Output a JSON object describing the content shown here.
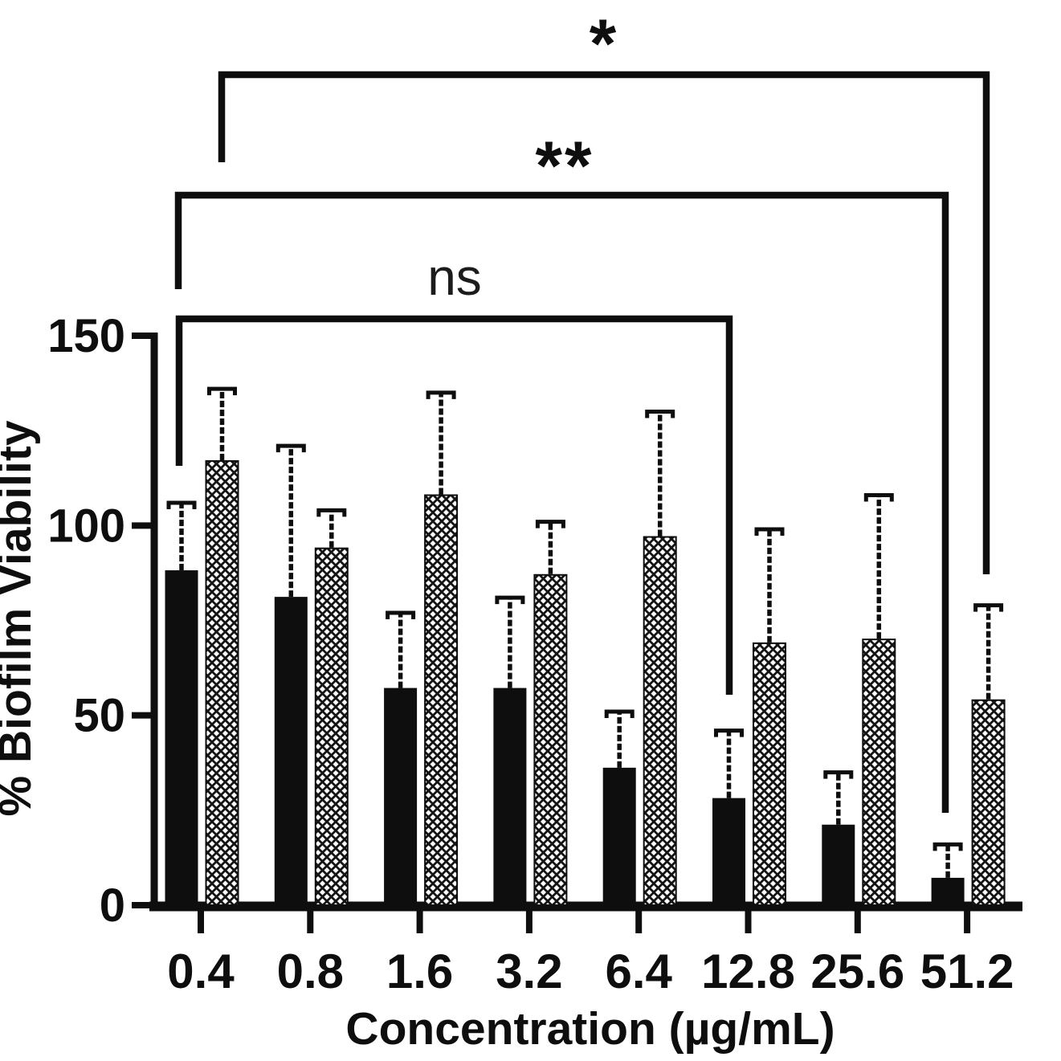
{
  "chart_data": {
    "type": "bar",
    "title": "",
    "xlabel": "Concentration (µg/mL)",
    "ylabel": "% Biofilm Viability",
    "ylim": [
      0,
      150
    ],
    "yticks": [
      "0",
      "50",
      "100",
      "150"
    ],
    "grid": false,
    "legend": "none",
    "error_bars": "upper-only",
    "categories": [
      "0.4",
      "0.8",
      "1.6",
      "3.2",
      "6.4",
      "12.8",
      "25.6",
      "51.2"
    ],
    "series": [
      {
        "name": "black-solid-bars",
        "pattern": "solid-black",
        "values": [
          88,
          81,
          57,
          57,
          36,
          28,
          21,
          7
        ],
        "errors_up": [
          18,
          40,
          20,
          24,
          15,
          18,
          14,
          9
        ]
      },
      {
        "name": "crosshatched-bars",
        "pattern": "crosshatch",
        "values": [
          117,
          94,
          108,
          87,
          97,
          69,
          70,
          54
        ],
        "errors_up": [
          19,
          10,
          27,
          14,
          33,
          30,
          38,
          25
        ]
      }
    ],
    "annotations": [
      {
        "label": "*",
        "from_category": "0.4",
        "to_category": "51.2"
      },
      {
        "label": "**",
        "from_category": "0.4",
        "to_category": "51.2"
      },
      {
        "label": "ns",
        "from_category": "0.4",
        "to_category": "12.8"
      }
    ],
    "colors": {
      "ink": "#0e0e0e",
      "background": "#ffffff"
    }
  }
}
